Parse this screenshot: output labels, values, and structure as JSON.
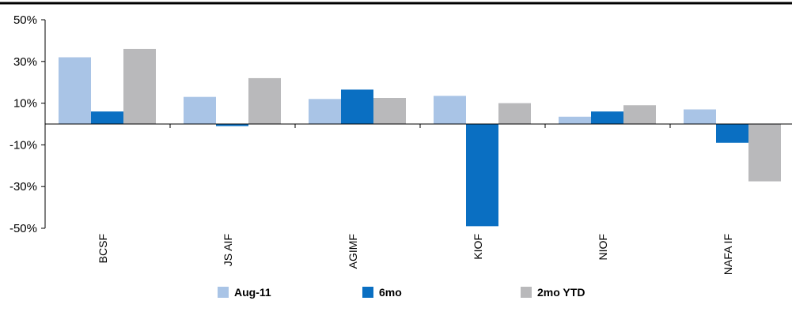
{
  "chart_data": {
    "type": "bar",
    "categories": [
      "BCSF",
      "JS AIF",
      "AGIMF",
      "KIOF",
      "NIOF",
      "NAFA IF"
    ],
    "series": [
      {
        "name": "Aug-11",
        "color": "#a9c4e6",
        "values": [
          32,
          13,
          12,
          13.5,
          3.5,
          7
        ]
      },
      {
        "name": "6mo",
        "color": "#0a6fc2",
        "values": [
          6,
          -1,
          16.5,
          -49,
          6,
          -9
        ]
      },
      {
        "name": "2mo YTD",
        "color": "#b9b9bb",
        "values": [
          36,
          22,
          12.5,
          10,
          9,
          -27.5
        ]
      }
    ],
    "yticks": [
      "50%",
      "30%",
      "10%",
      "-10%",
      "-30%",
      "-50%"
    ],
    "ytick_values": [
      50,
      30,
      10,
      -10,
      -30,
      -50
    ],
    "ylim": [
      -50,
      50
    ],
    "legend_position": "bottom",
    "grid": false,
    "top_rule_color": "#000000"
  }
}
